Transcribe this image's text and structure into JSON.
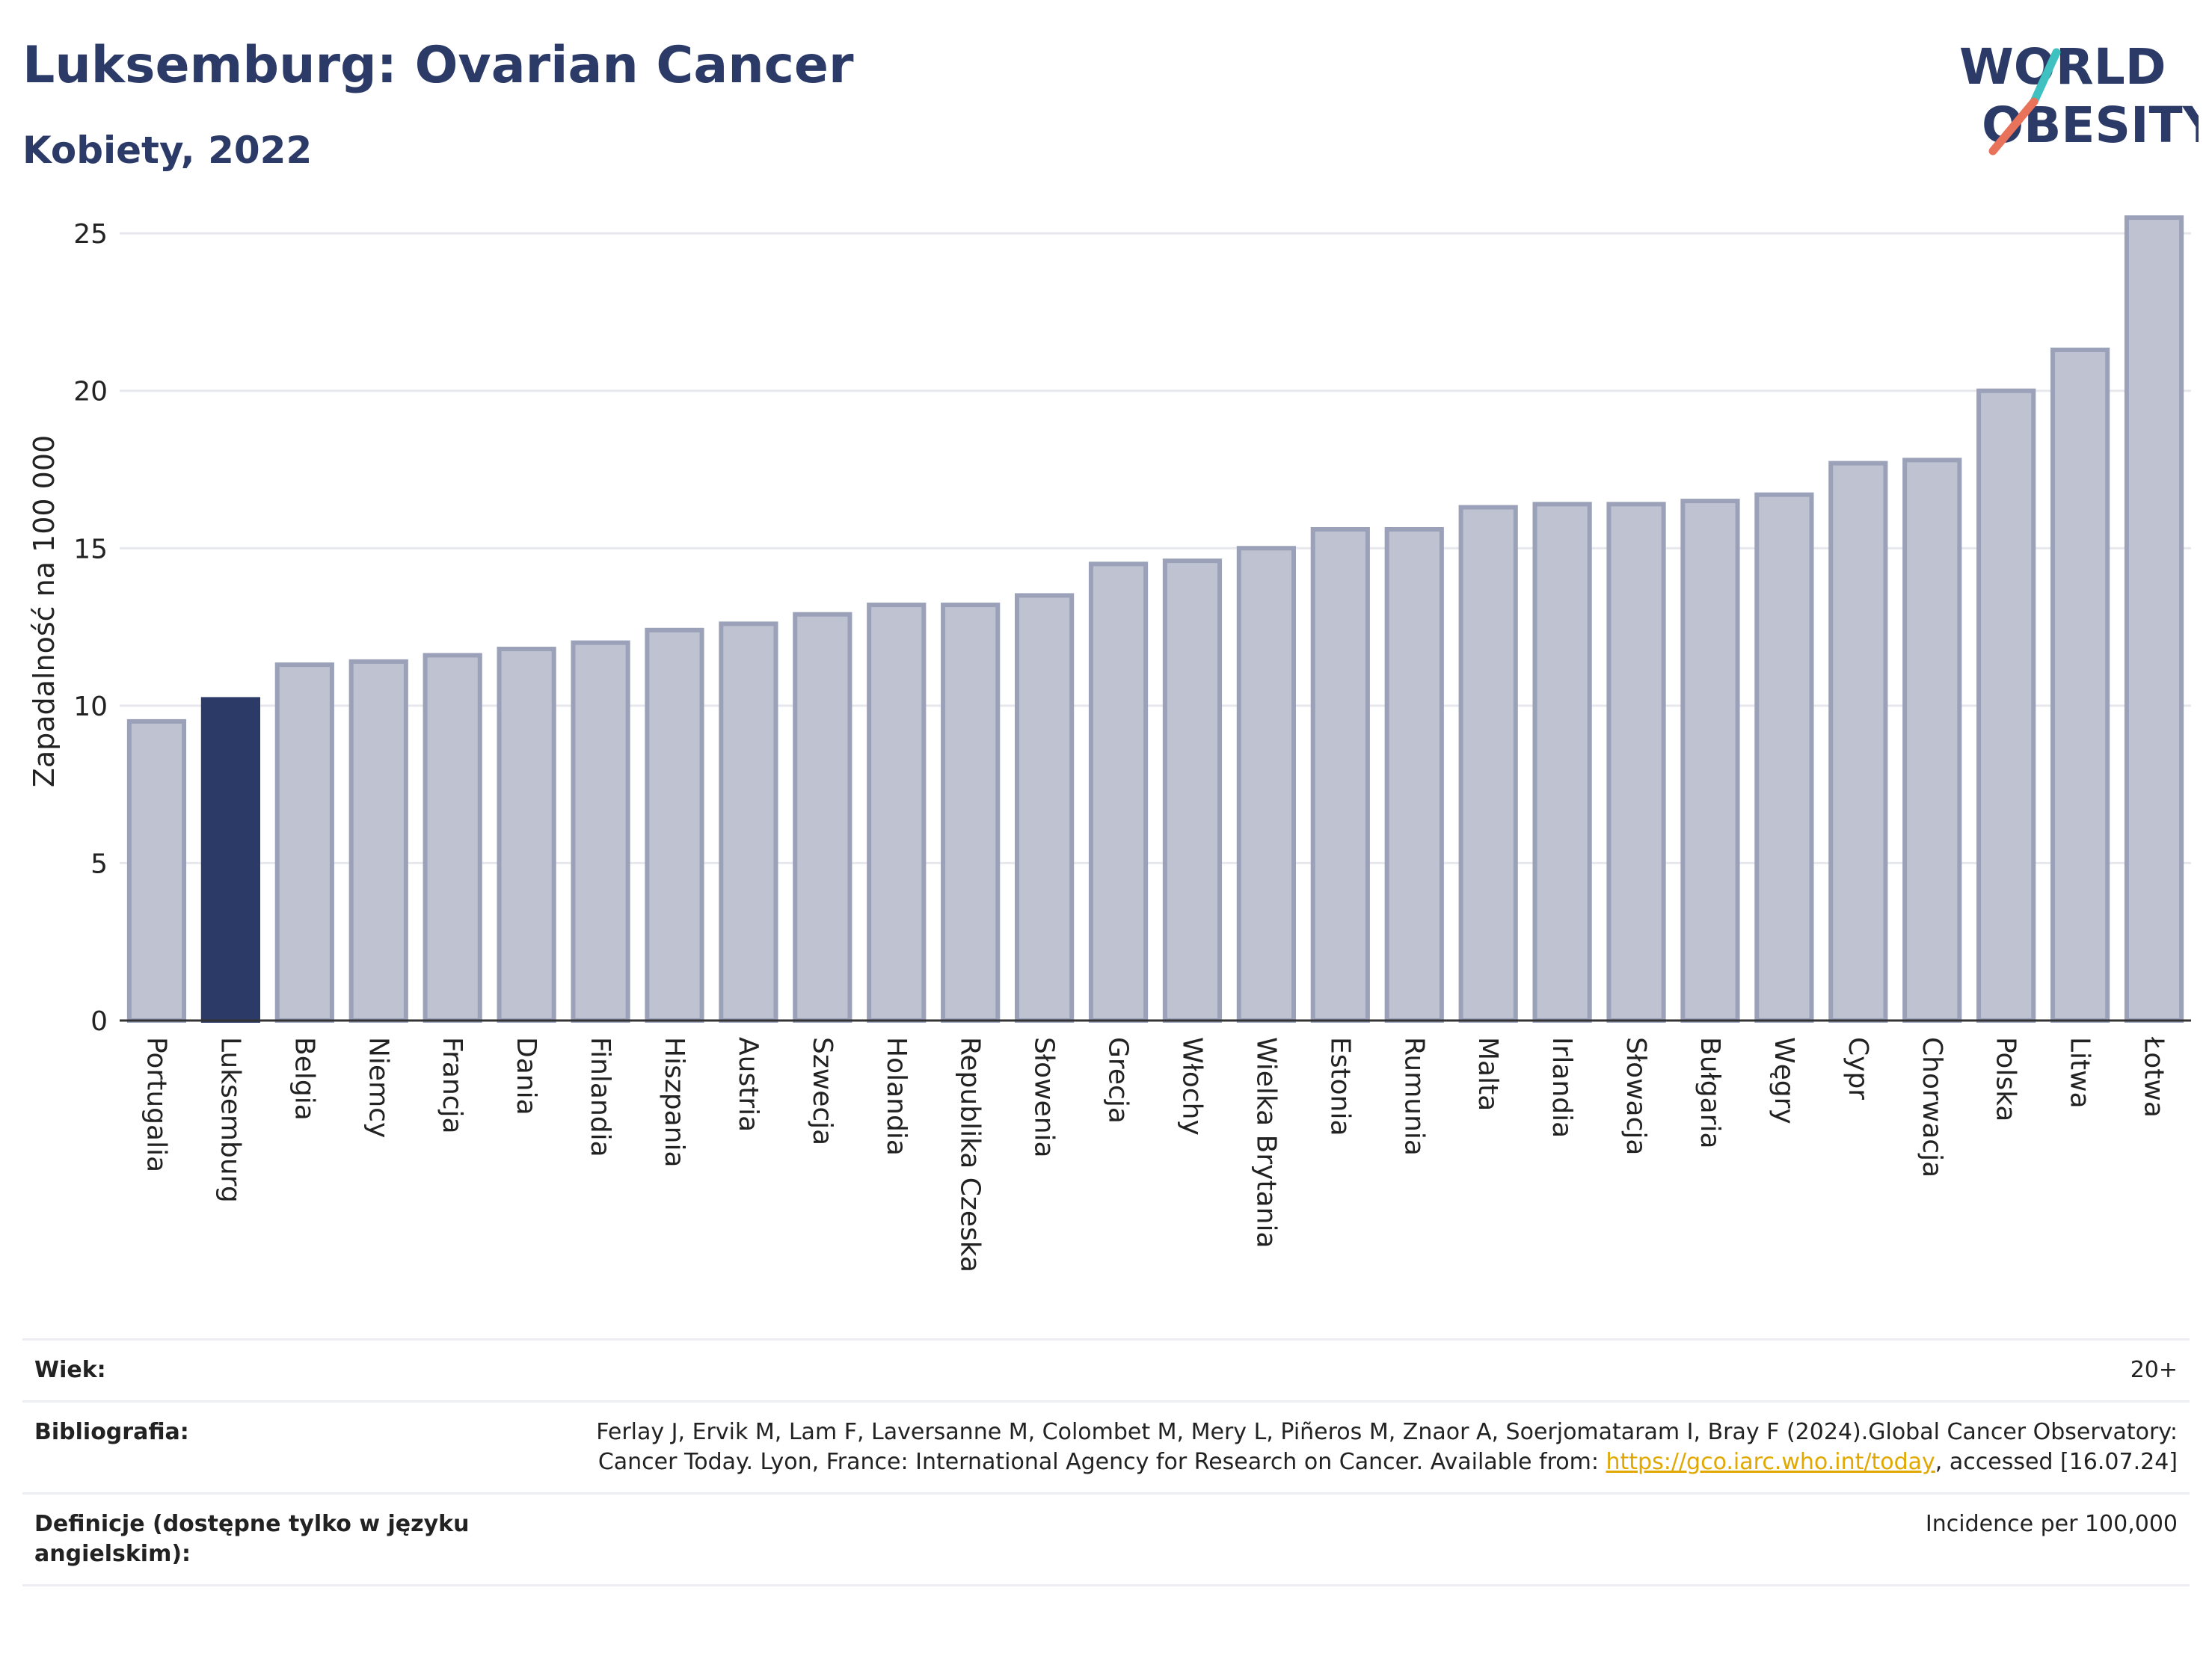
{
  "header": {
    "title": "Luksemburg: Ovarian Cancer",
    "subtitle": "Kobiety, 2022",
    "logo_line1": "WORLD",
    "logo_line2": "OBESITY"
  },
  "colors": {
    "highlight": "#2b3a67",
    "bar_fill": "#bfc3d1",
    "bar_stroke": "#9aa1b8",
    "text": "#2b3a67",
    "logo_teal": "#3ec1c0",
    "logo_coral": "#e8735a"
  },
  "chart_data": {
    "type": "bar",
    "ylabel": "Zapadalność na 100 000",
    "ylim": [
      0,
      26
    ],
    "yticks": [
      0,
      5,
      10,
      15,
      20,
      25
    ],
    "grid": true,
    "highlight": "Luksemburg",
    "categories": [
      "Portugalia",
      "Luksemburg",
      "Belgia",
      "Niemcy",
      "Francja",
      "Dania",
      "Finlandia",
      "Hiszpania",
      "Austria",
      "Szwecja",
      "Holandia",
      "Republika Czeska",
      "Słowenia",
      "Grecja",
      "Włochy",
      "Wielka Brytania",
      "Estonia",
      "Rumunia",
      "Malta",
      "Irlandia",
      "Słowacja",
      "Bułgaria",
      "Węgry",
      "Cypr",
      "Chorwacja",
      "Polska",
      "Litwa",
      "Łotwa"
    ],
    "values": [
      9.5,
      10.2,
      11.3,
      11.4,
      11.6,
      11.8,
      12.0,
      12.4,
      12.6,
      12.9,
      13.2,
      13.2,
      13.5,
      14.5,
      14.6,
      15.0,
      15.6,
      15.6,
      16.3,
      16.4,
      16.4,
      16.5,
      16.7,
      17.7,
      17.8,
      20.0,
      21.3,
      25.5
    ]
  },
  "footer": {
    "age_label": "Wiek:",
    "age_value": "20+",
    "bib_label": "Bibliografia:",
    "bib_text": "Ferlay J, Ervik M, Lam F, Laversanne M, Colombet M, Mery L, Piñeros M, Znaor A, Soerjomataram I, Bray F (2024).Global Cancer Observatory: Cancer Today. Lyon, France: International Agency for Research on Cancer. Available from: ",
    "bib_link": "https://gco.iarc.who.int/today",
    "bib_suffix": ", accessed [16.07.24]",
    "def_label": "Definicje (dostępne tylko w języku angielskim):",
    "def_value": "Incidence per 100,000"
  }
}
